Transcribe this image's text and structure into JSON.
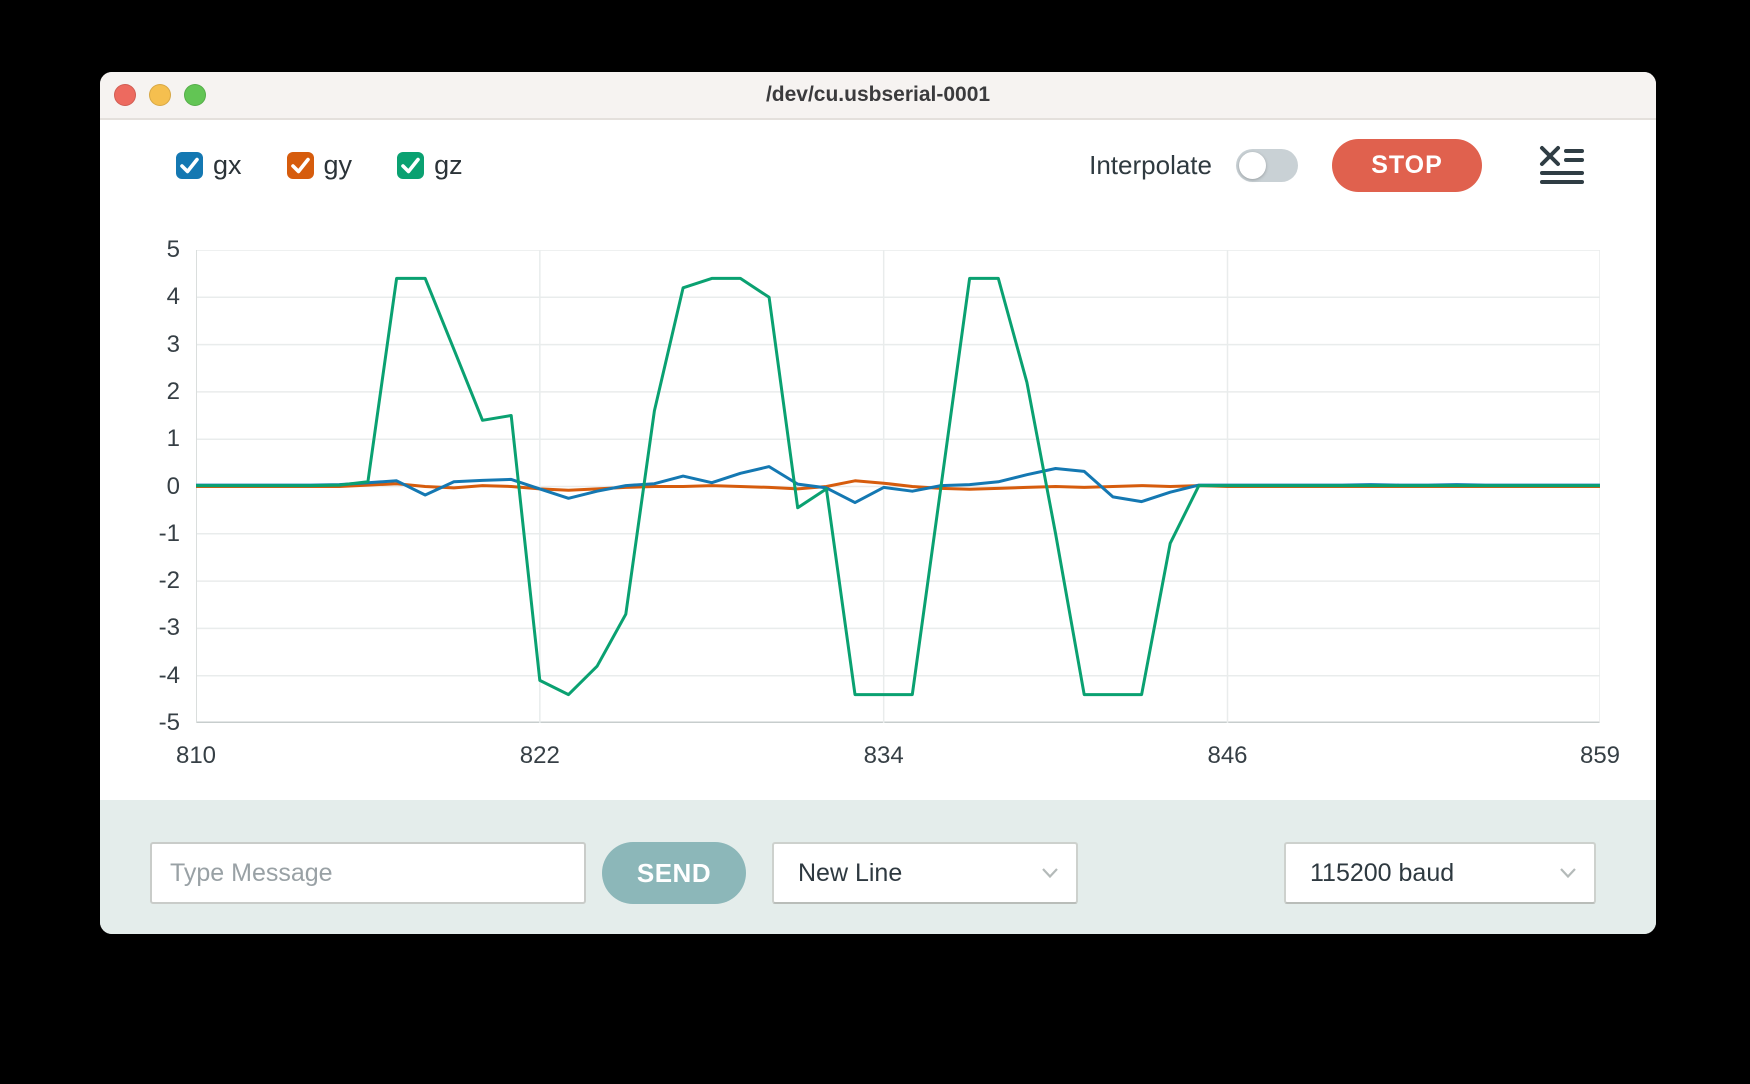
{
  "window": {
    "title": "/dev/cu.usbserial-0001"
  },
  "toolbar": {
    "legend": [
      {
        "label": "gx",
        "color": "#1478b2",
        "checked": true
      },
      {
        "label": "gy",
        "color": "#d65c0d",
        "checked": true
      },
      {
        "label": "gz",
        "color": "#0aa171",
        "checked": true
      }
    ],
    "interpolate_label": "Interpolate",
    "interpolate_on": false,
    "stop_label": "STOP"
  },
  "chart_data": {
    "type": "line",
    "x": [
      810,
      811,
      812,
      813,
      814,
      815,
      816,
      817,
      818,
      819,
      820,
      821,
      822,
      823,
      824,
      825,
      826,
      827,
      828,
      829,
      830,
      831,
      832,
      833,
      834,
      835,
      836,
      837,
      838,
      839,
      840,
      841,
      842,
      843,
      844,
      845,
      846,
      847,
      848,
      849,
      850,
      851,
      852,
      853,
      854,
      855,
      856,
      857,
      858,
      859
    ],
    "series": [
      {
        "name": "gx",
        "color": "#1478b2",
        "values": [
          0.03,
          0.03,
          0.03,
          0.03,
          0.03,
          0.04,
          0.08,
          0.12,
          -0.18,
          0.1,
          0.13,
          0.15,
          -0.05,
          -0.25,
          -0.1,
          0.02,
          0.06,
          0.22,
          0.08,
          0.28,
          0.42,
          0.05,
          -0.03,
          -0.34,
          -0.02,
          -0.1,
          0.02,
          0.04,
          0.1,
          0.25,
          0.38,
          0.32,
          -0.22,
          -0.32,
          -0.12,
          0.03,
          0.03,
          0.03,
          0.03,
          0.03,
          0.03,
          0.04,
          0.03,
          0.03,
          0.04,
          0.03,
          0.03,
          0.03,
          0.03,
          0.03
        ]
      },
      {
        "name": "gy",
        "color": "#d65c0d",
        "values": [
          0,
          0,
          0,
          0,
          0,
          0,
          0.03,
          0.06,
          0,
          -0.03,
          0.02,
          0,
          -0.05,
          -0.08,
          -0.05,
          -0.02,
          0,
          0,
          0.02,
          0,
          -0.02,
          -0.05,
          0,
          0.12,
          0.07,
          0,
          -0.04,
          -0.06,
          -0.04,
          -0.02,
          0,
          -0.02,
          0,
          0.02,
          0,
          0.02,
          0,
          0,
          0,
          0,
          0,
          0,
          0,
          0,
          0,
          0,
          0,
          0,
          0,
          0
        ]
      },
      {
        "name": "gz",
        "color": "#0aa171",
        "values": [
          0.02,
          0.02,
          0.02,
          0.02,
          0.02,
          0.03,
          0.1,
          4.4,
          4.4,
          2.9,
          1.4,
          1.5,
          -4.1,
          -4.4,
          -3.8,
          -2.7,
          1.6,
          4.2,
          4.4,
          4.4,
          4.0,
          -0.45,
          -0.05,
          -4.4,
          -4.4,
          -4.4,
          0.0,
          4.4,
          4.4,
          2.2,
          -1.0,
          -4.4,
          -4.4,
          -4.4,
          -1.2,
          0.02,
          0.02,
          0.02,
          0.02,
          0.02,
          0.02,
          0.02,
          0.02,
          0.02,
          0.02,
          0.02,
          0.02,
          0.02,
          0.02,
          0.02
        ]
      }
    ],
    "xlim": [
      810,
      859
    ],
    "ylim": [
      -5,
      5
    ],
    "xticks": [
      810,
      822,
      834,
      846,
      859
    ],
    "yticks": [
      -5,
      -4,
      -3,
      -2,
      -1,
      0,
      1,
      2,
      3,
      4,
      5
    ],
    "grid": true,
    "legend_position": "top-left",
    "draw_order": [
      1,
      0,
      2
    ]
  },
  "footer": {
    "message_placeholder": "Type Message",
    "send_label": "SEND",
    "line_ending": {
      "value": "New Line"
    },
    "baud": {
      "value": "115200 baud"
    }
  },
  "colors": {
    "stop_button": "#e0614e",
    "send_button": "#8cb7b9",
    "footer_bg": "#e4edeb",
    "titlebar_bg": "#f6f3f1",
    "grid_line": "#e9ecec",
    "axis_line": "#c7cdcd"
  }
}
